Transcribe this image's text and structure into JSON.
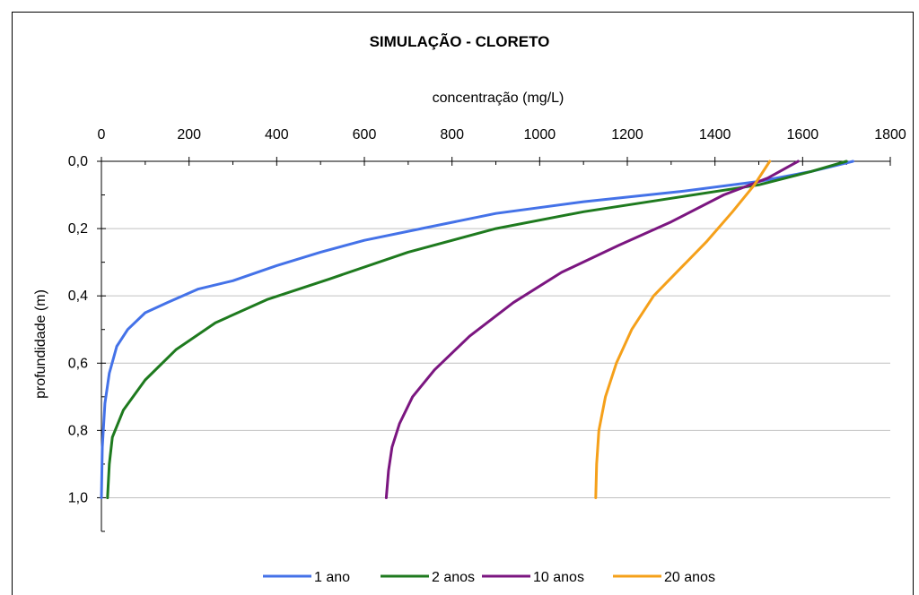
{
  "chart_data": {
    "type": "line",
    "title": "SIMULAÇÃO - CLORETO",
    "xlabel": "concentração (mg/L)",
    "ylabel": "profundidade (m)",
    "x_axis_position": "top",
    "y_axis_inverted": true,
    "xlim": [
      0,
      1800
    ],
    "ylim": [
      0,
      1.1
    ],
    "x_ticks": [
      "0",
      "200",
      "400",
      "600",
      "800",
      "1000",
      "1200",
      "1400",
      "1600",
      "1800"
    ],
    "y_ticks": [
      "0,0",
      "0,2",
      "0,4",
      "0,6",
      "0,8",
      "1,0"
    ],
    "grid": "horizontal",
    "legend_position": "bottom",
    "series": [
      {
        "name": "1 ano",
        "color": "#4472e8",
        "points": [
          [
            1715,
            0.0
          ],
          [
            1620,
            0.03
          ],
          [
            1500,
            0.06
          ],
          [
            1320,
            0.09
          ],
          [
            1100,
            0.12
          ],
          [
            900,
            0.155
          ],
          [
            730,
            0.2
          ],
          [
            600,
            0.235
          ],
          [
            500,
            0.27
          ],
          [
            400,
            0.31
          ],
          [
            300,
            0.355
          ],
          [
            220,
            0.38
          ],
          [
            150,
            0.42
          ],
          [
            100,
            0.45
          ],
          [
            60,
            0.5
          ],
          [
            35,
            0.55
          ],
          [
            18,
            0.63
          ],
          [
            8,
            0.72
          ],
          [
            2,
            0.85
          ],
          [
            0,
            1.0
          ]
        ]
      },
      {
        "name": "2 anos",
        "color": "#1e7a1e",
        "points": [
          [
            1700,
            0.0
          ],
          [
            1620,
            0.03
          ],
          [
            1500,
            0.07
          ],
          [
            1300,
            0.11
          ],
          [
            1100,
            0.15
          ],
          [
            900,
            0.2
          ],
          [
            700,
            0.27
          ],
          [
            520,
            0.35
          ],
          [
            380,
            0.41
          ],
          [
            260,
            0.48
          ],
          [
            170,
            0.56
          ],
          [
            100,
            0.65
          ],
          [
            50,
            0.74
          ],
          [
            25,
            0.82
          ],
          [
            18,
            0.9
          ],
          [
            14,
            1.0
          ]
        ]
      },
      {
        "name": "10 anos",
        "color": "#7b1680",
        "points": [
          [
            1590,
            0.0
          ],
          [
            1520,
            0.05
          ],
          [
            1420,
            0.1
          ],
          [
            1300,
            0.18
          ],
          [
            1180,
            0.25
          ],
          [
            1050,
            0.33
          ],
          [
            940,
            0.42
          ],
          [
            840,
            0.52
          ],
          [
            760,
            0.62
          ],
          [
            710,
            0.7
          ],
          [
            680,
            0.78
          ],
          [
            663,
            0.85
          ],
          [
            655,
            0.92
          ],
          [
            650,
            1.0
          ]
        ]
      },
      {
        "name": "20 anos",
        "color": "#f5a01a",
        "points": [
          [
            1525,
            0.0
          ],
          [
            1490,
            0.07
          ],
          [
            1440,
            0.15
          ],
          [
            1380,
            0.24
          ],
          [
            1320,
            0.32
          ],
          [
            1260,
            0.4
          ],
          [
            1210,
            0.5
          ],
          [
            1175,
            0.6
          ],
          [
            1150,
            0.7
          ],
          [
            1135,
            0.8
          ],
          [
            1130,
            0.9
          ],
          [
            1128,
            1.0
          ]
        ]
      }
    ]
  }
}
